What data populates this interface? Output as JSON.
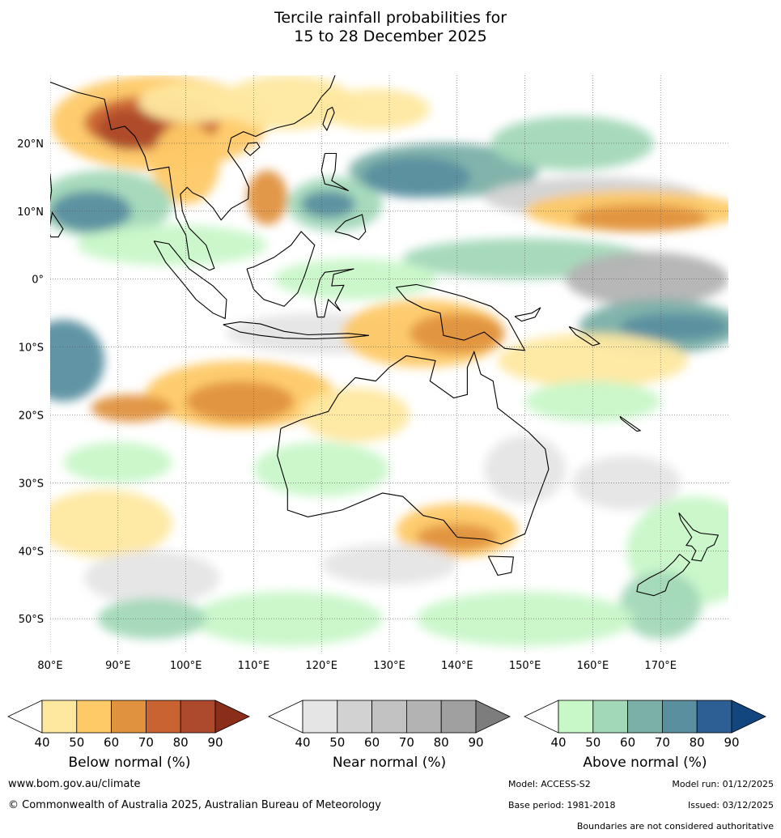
{
  "title": {
    "line1": "Tercile rainfall probabilities for",
    "line2": "15 to 28 December 2025"
  },
  "map": {
    "lat_labels": [
      "20°N",
      "10°N",
      "0°",
      "10°S",
      "20°S",
      "30°S",
      "40°S",
      "50°S"
    ],
    "lon_labels": [
      "80°E",
      "90°E",
      "100°E",
      "110°E",
      "120°E",
      "130°E",
      "140°E",
      "150°E",
      "160°E",
      "170°E"
    ],
    "extent": {
      "lon": [
        80,
        180
      ],
      "lat": [
        -55,
        30
      ]
    },
    "gridlines": true
  },
  "legend": {
    "ticks": [
      "40",
      "50",
      "60",
      "70",
      "80",
      "90"
    ],
    "bars": [
      {
        "title": "Below normal (%)",
        "colors": [
          "#ffffff",
          "#fee8a0",
          "#fec967",
          "#e0923f",
          "#c96331",
          "#ad4a2c",
          "#8b2d1b"
        ]
      },
      {
        "title": "Near normal (%)",
        "colors": [
          "#ffffff",
          "#e5e5e5",
          "#d2d2d2",
          "#c2c2c2",
          "#b3b3b3",
          "#a0a0a0",
          "#7d7d7d"
        ]
      },
      {
        "title": "Above normal (%)",
        "colors": [
          "#ffffff",
          "#c8f7c8",
          "#a2d8b8",
          "#7bb0a8",
          "#5a8fa0",
          "#2e5f94",
          "#12467e"
        ]
      }
    ]
  },
  "footer": {
    "url": "www.bom.gov.au/climate",
    "copyright": "© Commonwealth of Australia 2025, Australian Bureau of Meteorology",
    "model": "Model: ACCESS-S2",
    "model_run": "Model run: 01/12/2025",
    "base_period": "Base period: 1981-2018",
    "issued": "Issued: 03/12/2025",
    "boundaries": "Boundaries are not considered authoritative"
  }
}
